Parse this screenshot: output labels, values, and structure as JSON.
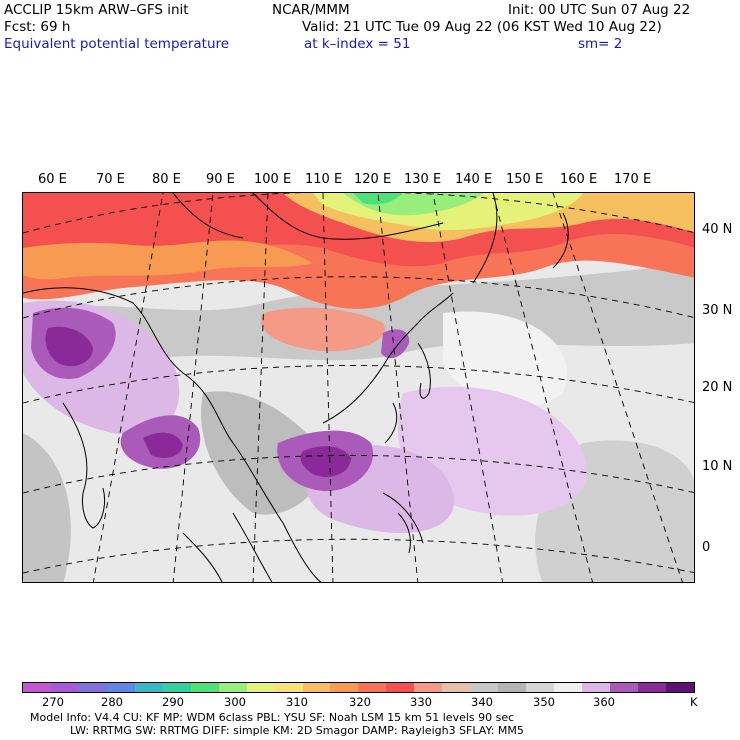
{
  "header": {
    "line1_left": "ACCLIP 15km ARW–GFS init",
    "line1_center": "NCAR/MMM",
    "line1_right": "Init: 00 UTC Sun 07 Aug 22",
    "line2_left": "Fcst:   69 h",
    "line2_right": "Valid: 21 UTC Tue 09 Aug 22 (06 KST Wed 10 Aug 22)",
    "line3_left": "Equivalent potential temperature",
    "line3_center": "at k–index =  51",
    "line3_right": "sm= 2"
  },
  "map": {
    "lon_labels": [
      "60 E",
      "70 E",
      "80 E",
      "90 E",
      "100 E",
      "110 E",
      "120 E",
      "130 E",
      "140 E",
      "150 E",
      "160 E",
      "170 E"
    ],
    "lat_labels": [
      "40 N",
      "30 N",
      "20 N",
      "10 N",
      "0"
    ]
  },
  "colorbar": {
    "colors": [
      "#c558d0",
      "#a55bd6",
      "#8472dc",
      "#5f88e6",
      "#3bb8c8",
      "#35d0a0",
      "#4fe07a",
      "#98ee7a",
      "#e4f27a",
      "#f8e27a",
      "#f6c060",
      "#f79a52",
      "#f77456",
      "#f45050",
      "#f49a86",
      "#e8c0aa",
      "#c8c8c8",
      "#b4b4b4",
      "#d6d6d6",
      "#f0f0f0",
      "#dcb8e6",
      "#aa5ab8",
      "#8a2a98",
      "#620f72"
    ],
    "tick_labels": [
      "270",
      "280",
      "290",
      "300",
      "310",
      "320",
      "330",
      "340",
      "350",
      "360"
    ],
    "unit": "K"
  },
  "footer": {
    "line1": "Model Info: V4.4     CU: KF       MP: WDM 6class   PBL: YSU        SF: Noah LSM     15 km    51 levels    90 sec",
    "line2": "LW: RRTMG     SW: RRTMG    DIFF: simple KM: 2D Smagor DAMP: Rayleigh3   SFLAY: MM5"
  }
}
